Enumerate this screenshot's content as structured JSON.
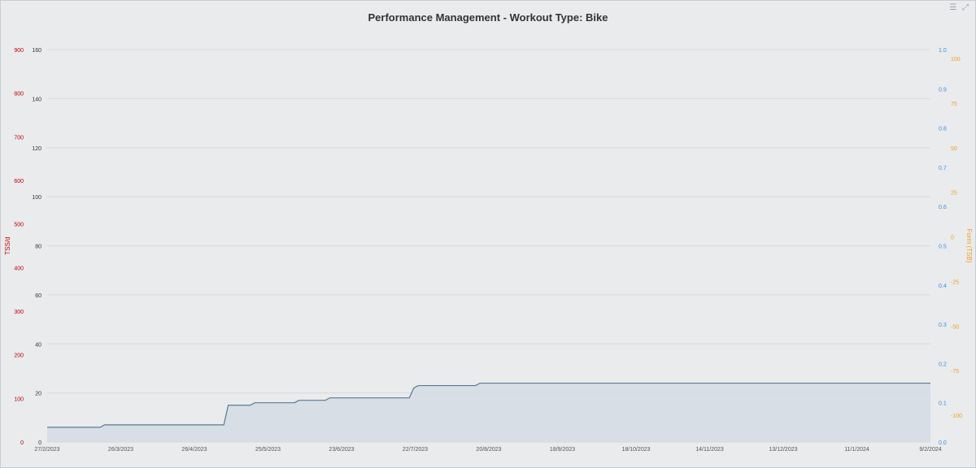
{
  "chart_data": {
    "type": "line",
    "title": "Performance Management - Workout Type: Bike",
    "x_ticks": [
      "27/2/2023",
      "26/3/2023",
      "26/4/2023",
      "25/5/2023",
      "23/6/2023",
      "22/7/2023",
      "20/8/2023",
      "18/9/2023",
      "18/10/2023",
      "14/11/2023",
      "13/12/2023",
      "11/1/2024",
      "9/2/2024"
    ],
    "axes": {
      "left_outer": {
        "label": "TSS/d",
        "color": "#c00000",
        "range": [
          0,
          900
        ],
        "ticks": [
          0,
          100,
          200,
          300,
          400,
          500,
          600,
          700,
          800,
          900
        ]
      },
      "left_inner": {
        "label": "",
        "color": "#333333",
        "range": [
          0,
          160
        ],
        "ticks": [
          0,
          20,
          40,
          60,
          80,
          100,
          120,
          140,
          160
        ]
      },
      "right_inner": {
        "label": "",
        "color": "#3a8ee6",
        "range": [
          0,
          1.0
        ],
        "ticks": [
          "0.0",
          "0.1",
          "0.2",
          "0.3",
          "0.4",
          "0.5",
          "0.6",
          "0.7",
          "0.8",
          "0.9",
          "1.0"
        ]
      },
      "right_outer": {
        "label": "Form (TSB)",
        "color": "#f0a020",
        "range": [
          -115,
          105
        ],
        "ticks": [
          -100,
          -75,
          -50,
          -25,
          0,
          25,
          50,
          75,
          100
        ]
      }
    },
    "colors": {
      "fitness_line": "#5a7a95",
      "fitness_fill": "#d4dce4",
      "fatigue": "#e040c8",
      "form": "#f5a623",
      "tss": "#b01010",
      "if": "#3a8ee6"
    },
    "series": [
      {
        "key": "fitness",
        "axis": "left_inner",
        "values": [
          [
            0,
            6
          ],
          [
            1,
            6
          ],
          [
            2,
            6
          ],
          [
            3,
            6
          ],
          [
            4,
            6
          ],
          [
            5,
            6
          ],
          [
            6,
            6
          ],
          [
            7,
            6
          ],
          [
            8,
            6
          ],
          [
            9,
            6
          ],
          [
            10,
            6
          ],
          [
            11,
            6
          ],
          [
            12,
            6
          ],
          [
            13,
            7
          ],
          [
            14,
            7
          ],
          [
            15,
            7
          ],
          [
            16,
            7
          ],
          [
            17,
            7
          ],
          [
            18,
            7
          ],
          [
            19,
            7
          ],
          [
            20,
            7
          ],
          [
            21,
            7
          ],
          [
            22,
            7
          ],
          [
            23,
            7
          ],
          [
            24,
            7
          ],
          [
            25,
            7
          ],
          [
            26,
            7
          ],
          [
            27,
            7
          ],
          [
            28,
            7
          ],
          [
            29,
            7
          ],
          [
            30,
            7
          ],
          [
            31,
            7
          ],
          [
            32,
            7
          ],
          [
            33,
            7
          ],
          [
            34,
            7
          ],
          [
            35,
            7
          ],
          [
            36,
            7
          ],
          [
            37,
            7
          ],
          [
            38,
            7
          ],
          [
            39,
            7
          ],
          [
            40,
            7
          ],
          [
            41,
            15
          ],
          [
            42,
            15
          ],
          [
            43,
            15
          ],
          [
            44,
            15
          ],
          [
            45,
            15
          ],
          [
            46,
            15
          ],
          [
            47,
            16
          ],
          [
            48,
            16
          ],
          [
            49,
            16
          ],
          [
            50,
            16
          ],
          [
            51,
            16
          ],
          [
            52,
            16
          ],
          [
            53,
            16
          ],
          [
            54,
            16
          ],
          [
            55,
            16
          ],
          [
            56,
            16
          ],
          [
            57,
            17
          ],
          [
            58,
            17
          ],
          [
            59,
            17
          ],
          [
            60,
            17
          ],
          [
            61,
            17
          ],
          [
            62,
            17
          ],
          [
            63,
            17
          ],
          [
            64,
            18
          ],
          [
            65,
            18
          ],
          [
            66,
            18
          ],
          [
            67,
            18
          ],
          [
            68,
            18
          ],
          [
            69,
            18
          ],
          [
            70,
            18
          ],
          [
            71,
            18
          ],
          [
            72,
            18
          ],
          [
            73,
            18
          ],
          [
            74,
            18
          ],
          [
            75,
            18
          ],
          [
            76,
            18
          ],
          [
            77,
            18
          ],
          [
            78,
            18
          ],
          [
            79,
            18
          ],
          [
            80,
            18
          ],
          [
            81,
            18
          ],
          [
            82,
            18
          ],
          [
            83,
            22
          ],
          [
            84,
            23
          ],
          [
            85,
            23
          ],
          [
            86,
            23
          ],
          [
            87,
            23
          ],
          [
            88,
            23
          ],
          [
            89,
            23
          ],
          [
            90,
            23
          ],
          [
            91,
            23
          ],
          [
            92,
            23
          ],
          [
            93,
            23
          ],
          [
            94,
            23
          ],
          [
            95,
            23
          ],
          [
            96,
            23
          ],
          [
            97,
            23
          ],
          [
            98,
            24
          ],
          [
            99,
            24
          ],
          [
            100,
            24
          ],
          [
            101,
            24
          ],
          [
            102,
            24
          ],
          [
            103,
            24
          ],
          [
            104,
            24
          ],
          [
            105,
            24
          ],
          [
            106,
            24
          ],
          [
            107,
            24
          ],
          [
            108,
            24
          ],
          [
            109,
            24
          ],
          [
            110,
            24
          ],
          [
            111,
            24
          ],
          [
            112,
            24
          ],
          [
            113,
            24
          ],
          [
            114,
            24
          ],
          [
            115,
            24
          ],
          [
            116,
            24
          ],
          [
            117,
            24
          ],
          [
            118,
            24
          ],
          [
            119,
            24
          ],
          [
            120,
            24
          ],
          [
            121,
            24
          ],
          [
            122,
            24
          ],
          [
            123,
            24
          ],
          [
            124,
            24
          ],
          [
            125,
            24
          ],
          [
            126,
            24
          ],
          [
            127,
            24
          ],
          [
            128,
            24
          ],
          [
            129,
            24
          ],
          [
            130,
            24
          ],
          [
            131,
            24
          ],
          [
            132,
            24
          ],
          [
            133,
            24
          ],
          [
            134,
            24
          ],
          [
            135,
            24
          ],
          [
            136,
            24
          ],
          [
            137,
            24
          ],
          [
            138,
            24
          ],
          [
            139,
            24
          ],
          [
            140,
            24
          ],
          [
            141,
            24
          ],
          [
            142,
            24
          ],
          [
            143,
            24
          ],
          [
            144,
            24
          ],
          [
            145,
            24
          ],
          [
            146,
            24
          ],
          [
            147,
            24
          ],
          [
            148,
            24
          ],
          [
            149,
            24
          ],
          [
            150,
            24
          ],
          [
            151,
            24
          ],
          [
            152,
            24
          ],
          [
            153,
            24
          ],
          [
            154,
            24
          ],
          [
            155,
            24
          ],
          [
            156,
            24
          ],
          [
            157,
            24
          ],
          [
            158,
            24
          ],
          [
            159,
            24
          ],
          [
            160,
            24
          ],
          [
            161,
            24
          ],
          [
            162,
            24
          ],
          [
            163,
            24
          ],
          [
            164,
            24
          ],
          [
            165,
            24
          ],
          [
            166,
            24
          ],
          [
            167,
            24
          ],
          [
            168,
            24
          ],
          [
            169,
            24
          ],
          [
            170,
            24
          ],
          [
            171,
            24
          ],
          [
            172,
            24
          ],
          [
            173,
            24
          ],
          [
            174,
            24
          ],
          [
            175,
            24
          ],
          [
            176,
            24
          ],
          [
            177,
            24
          ],
          [
            178,
            24
          ],
          [
            179,
            24
          ],
          [
            180,
            24
          ],
          [
            181,
            24
          ],
          [
            182,
            24
          ],
          [
            183,
            24
          ],
          [
            184,
            24
          ],
          [
            185,
            24
          ],
          [
            186,
            24
          ],
          [
            187,
            24
          ],
          [
            188,
            24
          ],
          [
            189,
            24
          ],
          [
            190,
            24
          ],
          [
            191,
            24
          ],
          [
            192,
            24
          ],
          [
            193,
            24
          ],
          [
            194,
            24
          ],
          [
            195,
            24
          ],
          [
            196,
            24
          ],
          [
            197,
            24
          ],
          [
            198,
            24
          ],
          [
            199,
            24
          ],
          [
            200,
            24
          ]
        ]
      },
      {
        "key": "fatigue",
        "axis": "left_inner",
        "values": []
      },
      {
        "key": "form",
        "axis": "right_outer",
        "values": []
      },
      {
        "key": "tss",
        "axis": "left_outer",
        "values": []
      },
      {
        "key": "if",
        "axis": "right_inner",
        "values": []
      }
    ]
  }
}
